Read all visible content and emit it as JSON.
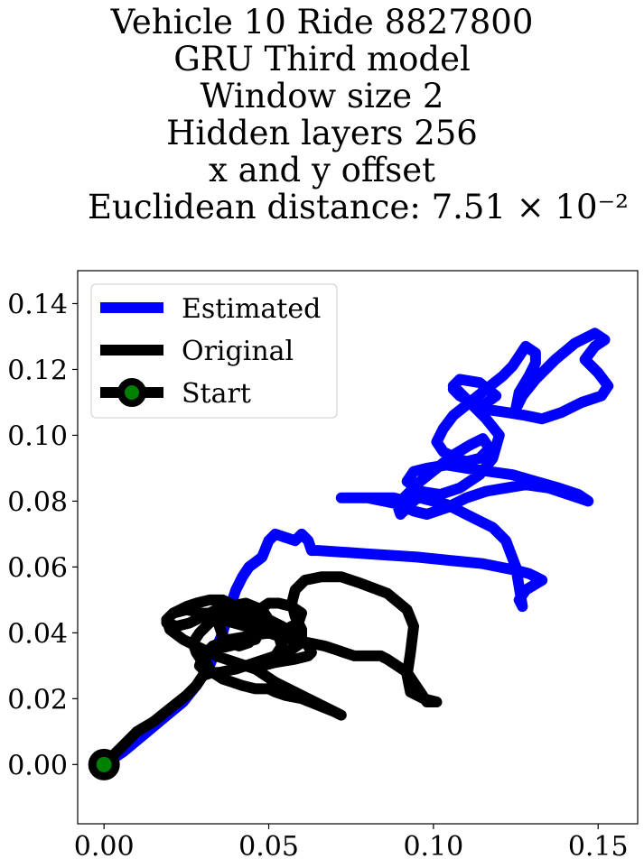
{
  "chart_data": {
    "type": "line",
    "title_lines": [
      "Vehicle 10 Ride 8827800",
      "GRU Third model",
      "Window size 2",
      "Hidden layers 256",
      "x and y offset",
      "Euclidean distance: 7.51 × 10⁻²"
    ],
    "xlim": [
      -0.008,
      0.162
    ],
    "ylim": [
      -0.018,
      0.15
    ],
    "x_ticks": [
      0.0,
      0.05,
      0.1,
      0.15
    ],
    "x_tick_labels": [
      "0.00",
      "0.05",
      "0.10",
      "0.15"
    ],
    "y_ticks": [
      0.0,
      0.02,
      0.04,
      0.06,
      0.08,
      0.1,
      0.12,
      0.14
    ],
    "y_tick_labels": [
      "0.00",
      "0.02",
      "0.04",
      "0.06",
      "0.08",
      "0.10",
      "0.12",
      "0.14"
    ],
    "grid": false,
    "legend_position": "upper-left",
    "series": [
      {
        "name": "Estimated",
        "color": "#0000ff",
        "x": [
          0.0,
          0.006,
          0.012,
          0.018,
          0.024,
          0.028,
          0.032,
          0.034,
          0.036,
          0.038,
          0.04,
          0.042,
          0.044,
          0.048,
          0.05,
          0.052,
          0.055,
          0.058,
          0.06,
          0.062,
          0.063,
          0.065,
          0.08,
          0.095,
          0.105,
          0.115,
          0.12,
          0.125,
          0.129,
          0.131,
          0.133,
          0.128,
          0.126,
          0.127,
          0.125,
          0.122,
          0.118,
          0.112,
          0.108,
          0.104,
          0.1,
          0.096,
          0.092,
          0.088,
          0.08,
          0.072,
          0.08,
          0.09,
          0.094,
          0.098,
          0.104,
          0.11,
          0.116,
          0.122,
          0.128,
          0.135,
          0.141,
          0.147,
          0.144,
          0.138,
          0.131,
          0.124,
          0.117,
          0.11,
          0.104,
          0.098,
          0.094,
          0.092,
          0.096,
          0.102,
          0.108,
          0.114,
          0.118,
          0.12,
          0.116,
          0.11,
          0.106,
          0.108,
          0.114,
          0.119,
          0.115,
          0.11,
          0.106,
          0.108,
          0.115,
          0.122,
          0.128,
          0.133,
          0.139,
          0.145,
          0.151,
          0.153,
          0.15,
          0.146,
          0.149,
          0.152,
          0.149,
          0.143,
          0.137,
          0.131,
          0.127,
          0.125,
          0.126,
          0.129,
          0.131,
          0.131,
          0.128,
          0.126,
          0.124,
          0.121,
          0.116,
          0.111,
          0.106,
          0.103,
          0.101,
          0.103,
          0.107,
          0.11,
          0.114,
          0.117,
          0.115,
          0.111,
          0.106,
          0.101,
          0.096,
          0.092,
          0.089,
          0.09,
          0.094
        ],
        "y": [
          0.0,
          0.004,
          0.009,
          0.014,
          0.019,
          0.024,
          0.03,
          0.035,
          0.04,
          0.047,
          0.053,
          0.057,
          0.06,
          0.063,
          0.068,
          0.07,
          0.069,
          0.068,
          0.07,
          0.068,
          0.065,
          0.065,
          0.064,
          0.063,
          0.062,
          0.061,
          0.06,
          0.059,
          0.058,
          0.057,
          0.056,
          0.053,
          0.05,
          0.048,
          0.06,
          0.068,
          0.072,
          0.075,
          0.077,
          0.079,
          0.08,
          0.081,
          0.08,
          0.081,
          0.081,
          0.081,
          0.081,
          0.079,
          0.077,
          0.076,
          0.078,
          0.081,
          0.083,
          0.084,
          0.085,
          0.084,
          0.082,
          0.08,
          0.082,
          0.084,
          0.086,
          0.088,
          0.089,
          0.09,
          0.091,
          0.09,
          0.089,
          0.086,
          0.083,
          0.082,
          0.084,
          0.088,
          0.093,
          0.1,
          0.105,
          0.111,
          0.115,
          0.117,
          0.116,
          0.112,
          0.109,
          0.111,
          0.114,
          0.112,
          0.108,
          0.107,
          0.106,
          0.105,
          0.107,
          0.11,
          0.112,
          0.115,
          0.119,
          0.123,
          0.127,
          0.129,
          0.131,
          0.128,
          0.123,
          0.117,
          0.112,
          0.108,
          0.113,
          0.118,
          0.122,
          0.125,
          0.127,
          0.124,
          0.121,
          0.118,
          0.114,
          0.11,
          0.106,
          0.102,
          0.098,
          0.095,
          0.093,
          0.092,
          0.093,
          0.096,
          0.099,
          0.097,
          0.094,
          0.09,
          0.086,
          0.082,
          0.079,
          0.076,
          0.08
        ]
      },
      {
        "name": "Original",
        "color": "#000000",
        "x": [
          0.0,
          0.005,
          0.01,
          0.015,
          0.02,
          0.025,
          0.028,
          0.03,
          0.033,
          0.036,
          0.039,
          0.042,
          0.046,
          0.05,
          0.052,
          0.055,
          0.06,
          0.065,
          0.07,
          0.072,
          0.068,
          0.06,
          0.052,
          0.046,
          0.04,
          0.034,
          0.028,
          0.024,
          0.02,
          0.019,
          0.021,
          0.025,
          0.03,
          0.036,
          0.043,
          0.05,
          0.056,
          0.062,
          0.067,
          0.07,
          0.073,
          0.076,
          0.08,
          0.084,
          0.086,
          0.089,
          0.092,
          0.094,
          0.096,
          0.098,
          0.101,
          0.097,
          0.093,
          0.092,
          0.093,
          0.094,
          0.092,
          0.086,
          0.078,
          0.072,
          0.066,
          0.061,
          0.058,
          0.057,
          0.058,
          0.06,
          0.06,
          0.057,
          0.052,
          0.046,
          0.04,
          0.035,
          0.031,
          0.029,
          0.03,
          0.033,
          0.038,
          0.044,
          0.05,
          0.055,
          0.059,
          0.06,
          0.057,
          0.053,
          0.05,
          0.047,
          0.044,
          0.04,
          0.036,
          0.032,
          0.028,
          0.025,
          0.021,
          0.019,
          0.019,
          0.022,
          0.026,
          0.03,
          0.034,
          0.038,
          0.043,
          0.048,
          0.05,
          0.048,
          0.046,
          0.044,
          0.041,
          0.038,
          0.036,
          0.035,
          0.036,
          0.038,
          0.041,
          0.044,
          0.046,
          0.047,
          0.046,
          0.042,
          0.038,
          0.034,
          0.031,
          0.03,
          0.031,
          0.032,
          0.03,
          0.028,
          0.027,
          0.029,
          0.032,
          0.035,
          0.038,
          0.042,
          0.046,
          0.05,
          0.054,
          0.057,
          0.06,
          0.062,
          0.063,
          0.062,
          0.058,
          0.052,
          0.048,
          0.046,
          0.048,
          0.052,
          0.054,
          0.053,
          0.05,
          0.046,
          0.041,
          0.036,
          0.031
        ],
        "y": [
          0.0,
          0.005,
          0.01,
          0.013,
          0.017,
          0.021,
          0.024,
          0.027,
          0.028,
          0.026,
          0.025,
          0.024,
          0.023,
          0.023,
          0.022,
          0.021,
          0.02,
          0.018,
          0.016,
          0.015,
          0.017,
          0.021,
          0.025,
          0.029,
          0.031,
          0.033,
          0.036,
          0.038,
          0.041,
          0.044,
          0.046,
          0.047,
          0.046,
          0.044,
          0.042,
          0.04,
          0.038,
          0.037,
          0.036,
          0.035,
          0.034,
          0.033,
          0.033,
          0.033,
          0.032,
          0.03,
          0.028,
          0.025,
          0.022,
          0.019,
          0.019,
          0.02,
          0.022,
          0.027,
          0.034,
          0.042,
          0.047,
          0.052,
          0.055,
          0.057,
          0.057,
          0.056,
          0.053,
          0.049,
          0.045,
          0.041,
          0.037,
          0.035,
          0.033,
          0.031,
          0.029,
          0.028,
          0.028,
          0.03,
          0.033,
          0.036,
          0.038,
          0.039,
          0.04,
          0.041,
          0.043,
          0.046,
          0.048,
          0.049,
          0.049,
          0.047,
          0.046,
          0.048,
          0.05,
          0.05,
          0.049,
          0.048,
          0.046,
          0.044,
          0.043,
          0.042,
          0.043,
          0.045,
          0.047,
          0.048,
          0.049,
          0.047,
          0.044,
          0.041,
          0.039,
          0.037,
          0.036,
          0.037,
          0.039,
          0.042,
          0.044,
          0.045,
          0.046,
          0.045,
          0.043,
          0.04,
          0.038,
          0.037,
          0.036,
          0.035,
          0.034,
          0.033,
          0.031,
          0.029,
          0.031,
          0.034,
          0.037,
          0.04,
          0.043,
          0.045,
          0.046,
          0.046,
          0.045,
          0.044,
          0.042,
          0.04,
          0.038,
          0.036,
          0.034,
          0.033,
          0.032,
          0.031,
          0.03,
          0.03,
          0.031,
          0.033,
          0.036,
          0.039,
          0.041,
          0.043,
          0.044,
          0.045,
          0.046
        ]
      },
      {
        "name": "Start",
        "color": "#000000",
        "marker_face": "#008000",
        "x": [
          0.0
        ],
        "y": [
          0.0
        ]
      }
    ]
  }
}
